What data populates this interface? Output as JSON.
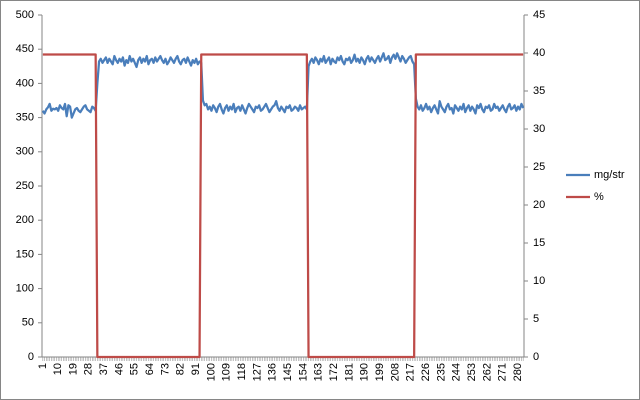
{
  "chart_data": {
    "type": "line",
    "x": [
      1,
      2,
      3,
      4,
      5,
      6,
      7,
      8,
      9,
      10,
      11,
      12,
      13,
      14,
      15,
      16,
      17,
      18,
      19,
      20,
      21,
      22,
      23,
      24,
      25,
      26,
      27,
      28,
      29,
      30,
      31,
      32,
      33,
      34,
      35,
      36,
      37,
      38,
      39,
      40,
      41,
      42,
      43,
      44,
      45,
      46,
      47,
      48,
      49,
      50,
      51,
      52,
      53,
      54,
      55,
      56,
      57,
      58,
      59,
      60,
      61,
      62,
      63,
      64,
      65,
      66,
      67,
      68,
      69,
      70,
      71,
      72,
      73,
      74,
      75,
      76,
      77,
      78,
      79,
      80,
      81,
      82,
      83,
      84,
      85,
      86,
      87,
      88,
      89,
      90,
      91,
      92,
      93,
      94,
      95,
      96,
      97,
      98,
      99,
      100,
      101,
      102,
      103,
      104,
      105,
      106,
      107,
      108,
      109,
      110,
      111,
      112,
      113,
      114,
      115,
      116,
      117,
      118,
      119,
      120,
      121,
      122,
      123,
      124,
      125,
      126,
      127,
      128,
      129,
      130,
      131,
      132,
      133,
      134,
      135,
      136,
      137,
      138,
      139,
      140,
      141,
      142,
      143,
      144,
      145,
      146,
      147,
      148,
      149,
      150,
      151,
      152,
      153,
      154,
      155,
      156,
      157,
      158,
      159,
      160,
      161,
      162,
      163,
      164,
      165,
      166,
      167,
      168,
      169,
      170,
      171,
      172,
      173,
      174,
      175,
      176,
      177,
      178,
      179,
      180,
      181,
      182,
      183,
      184,
      185,
      186,
      187,
      188,
      189,
      190,
      191,
      192,
      193,
      194,
      195,
      196,
      197,
      198,
      199,
      200,
      201,
      202,
      203,
      204,
      205,
      206,
      207,
      208,
      209,
      210,
      211,
      212,
      213,
      214,
      215,
      216,
      217,
      218,
      219,
      220,
      221,
      222,
      223,
      224,
      225,
      226,
      227,
      228,
      229,
      230,
      231,
      232,
      233,
      234,
      235,
      236,
      237,
      238,
      239,
      240,
      241,
      242,
      243,
      244,
      245,
      246,
      247,
      248,
      249,
      250,
      251,
      252,
      253,
      254,
      255,
      256,
      257,
      258,
      259,
      260,
      261,
      262,
      263,
      264,
      265,
      266,
      267,
      268,
      269,
      270,
      271,
      272,
      273,
      274,
      275,
      276,
      277,
      278,
      279,
      280,
      281,
      282,
      283
    ],
    "xlim": [
      0.5,
      283.5
    ],
    "xticks": [
      1,
      10,
      19,
      28,
      37,
      46,
      55,
      64,
      73,
      82,
      91,
      100,
      109,
      118,
      127,
      136,
      145,
      154,
      163,
      172,
      181,
      190,
      199,
      208,
      217,
      226,
      235,
      244,
      253,
      262,
      271,
      280
    ],
    "ylim": [
      0,
      500
    ],
    "yticks": [
      0,
      50,
      100,
      150,
      200,
      250,
      300,
      350,
      400,
      450,
      500
    ],
    "y2lim": [
      0,
      45
    ],
    "y2ticks": [
      0,
      5,
      10,
      15,
      20,
      25,
      30,
      35,
      40,
      45
    ],
    "legend": "right",
    "series": [
      {
        "name": "mg/str",
        "color": "#4a7ebb",
        "values": [
          360,
          356,
          362,
          365,
          370,
          360,
          363,
          362,
          364,
          360,
          368,
          364,
          362,
          370,
          352,
          368,
          366,
          350,
          356,
          362,
          364,
          360,
          358,
          362,
          366,
          368,
          362,
          360,
          358,
          366,
          364,
          360,
          400,
          432,
          436,
          430,
          434,
          438,
          430,
          436,
          432,
          428,
          440,
          434,
          430,
          436,
          432,
          438,
          426,
          434,
          430,
          440,
          432,
          436,
          430,
          424,
          434,
          438,
          430,
          436,
          432,
          440,
          428,
          434,
          436,
          430,
          438,
          432,
          436,
          440,
          434,
          430,
          436,
          428,
          432,
          438,
          434,
          430,
          436,
          440,
          432,
          428,
          434,
          436,
          430,
          438,
          432,
          426,
          434,
          430,
          436,
          428,
          432,
          430,
          375,
          368,
          370,
          362,
          366,
          360,
          368,
          364,
          358,
          366,
          370,
          362,
          356,
          364,
          368,
          360,
          366,
          362,
          370,
          358,
          364,
          366,
          360,
          368,
          362,
          356,
          364,
          370,
          366,
          362,
          358,
          366,
          364,
          368,
          360,
          362,
          366,
          370,
          364,
          358,
          362,
          366,
          368,
          374,
          364,
          360,
          366,
          362,
          358,
          366,
          364,
          368,
          360,
          362,
          366,
          364,
          360,
          368,
          362,
          364,
          366,
          362,
          425,
          432,
          436,
          430,
          438,
          434,
          428,
          436,
          432,
          440,
          430,
          434,
          438,
          428,
          436,
          432,
          430,
          438,
          434,
          440,
          432,
          428,
          436,
          434,
          438,
          430,
          434,
          442,
          432,
          436,
          430,
          438,
          434,
          428,
          436,
          440,
          432,
          438,
          434,
          430,
          436,
          440,
          432,
          438,
          444,
          434,
          436,
          440,
          430,
          438,
          442,
          436,
          444,
          438,
          432,
          440,
          436,
          430,
          434,
          438,
          440,
          432,
          428,
          378,
          366,
          362,
          368,
          360,
          364,
          370,
          362,
          366,
          358,
          364,
          368,
          362,
          356,
          374,
          366,
          362,
          358,
          366,
          370,
          362,
          364,
          356,
          368,
          364,
          360,
          366,
          362,
          370,
          358,
          364,
          368,
          360,
          366,
          362,
          356,
          368,
          364,
          370,
          362,
          358,
          366,
          364,
          368,
          360,
          362,
          370,
          364,
          366,
          360,
          364,
          368,
          362,
          358,
          366,
          370,
          362,
          364,
          368,
          360,
          366,
          362,
          370,
          364
        ]
      },
      {
        "name": "%",
        "color": "#be4b48",
        "axis": "y2",
        "values": [
          39.8,
          39.8,
          39.8,
          39.8,
          39.8,
          39.8,
          39.8,
          39.8,
          39.8,
          39.8,
          39.8,
          39.8,
          39.8,
          39.8,
          39.8,
          39.8,
          39.8,
          39.8,
          39.8,
          39.8,
          39.8,
          39.8,
          39.8,
          39.8,
          39.8,
          39.8,
          39.8,
          39.8,
          39.8,
          39.8,
          39.8,
          39.8,
          0,
          0,
          0,
          0,
          0,
          0,
          0,
          0,
          0,
          0,
          0,
          0,
          0,
          0,
          0,
          0,
          0,
          0,
          0,
          0,
          0,
          0,
          0,
          0,
          0,
          0,
          0,
          0,
          0,
          0,
          0,
          0,
          0,
          0,
          0,
          0,
          0,
          0,
          0,
          0,
          0,
          0,
          0,
          0,
          0,
          0,
          0,
          0,
          0,
          0,
          0,
          0,
          0,
          0,
          0,
          0,
          0,
          0,
          0,
          0,
          0,
          39.8,
          39.8,
          39.8,
          39.8,
          39.8,
          39.8,
          39.8,
          39.8,
          39.8,
          39.8,
          39.8,
          39.8,
          39.8,
          39.8,
          39.8,
          39.8,
          39.8,
          39.8,
          39.8,
          39.8,
          39.8,
          39.8,
          39.8,
          39.8,
          39.8,
          39.8,
          39.8,
          39.8,
          39.8,
          39.8,
          39.8,
          39.8,
          39.8,
          39.8,
          39.8,
          39.8,
          39.8,
          39.8,
          39.8,
          39.8,
          39.8,
          39.8,
          39.8,
          39.8,
          39.8,
          39.8,
          39.8,
          39.8,
          39.8,
          39.8,
          39.8,
          39.8,
          39.8,
          39.8,
          39.8,
          39.8,
          39.8,
          39.8,
          39.8,
          39.8,
          39.8,
          39.8,
          39.8,
          0,
          0,
          0,
          0,
          0,
          0,
          0,
          0,
          0,
          0,
          0,
          0,
          0,
          0,
          0,
          0,
          0,
          0,
          0,
          0,
          0,
          0,
          0,
          0,
          0,
          0,
          0,
          0,
          0,
          0,
          0,
          0,
          0,
          0,
          0,
          0,
          0,
          0,
          0,
          0,
          0,
          0,
          0,
          0,
          0,
          0,
          0,
          0,
          0,
          0,
          0,
          0,
          0,
          0,
          0,
          0,
          0,
          0,
          0,
          0,
          0,
          0,
          0,
          39.8,
          39.8,
          39.8,
          39.8,
          39.8,
          39.8,
          39.8,
          39.8,
          39.8,
          39.8,
          39.8,
          39.8,
          39.8,
          39.8,
          39.8,
          39.8,
          39.8,
          39.8,
          39.8,
          39.8,
          39.8,
          39.8,
          39.8,
          39.8,
          39.8,
          39.8,
          39.8,
          39.8,
          39.8,
          39.8,
          39.8,
          39.8,
          39.8,
          39.8,
          39.8,
          39.8,
          39.8,
          39.8,
          39.8,
          39.8,
          39.8,
          39.8,
          39.8,
          39.8,
          39.8,
          39.8,
          39.8,
          39.8,
          39.8,
          39.8,
          39.8,
          39.8,
          39.8,
          39.8,
          39.8,
          39.8,
          39.8,
          39.8,
          39.8,
          39.8,
          39.8,
          39.8,
          39.8,
          39.8
        ]
      }
    ]
  }
}
